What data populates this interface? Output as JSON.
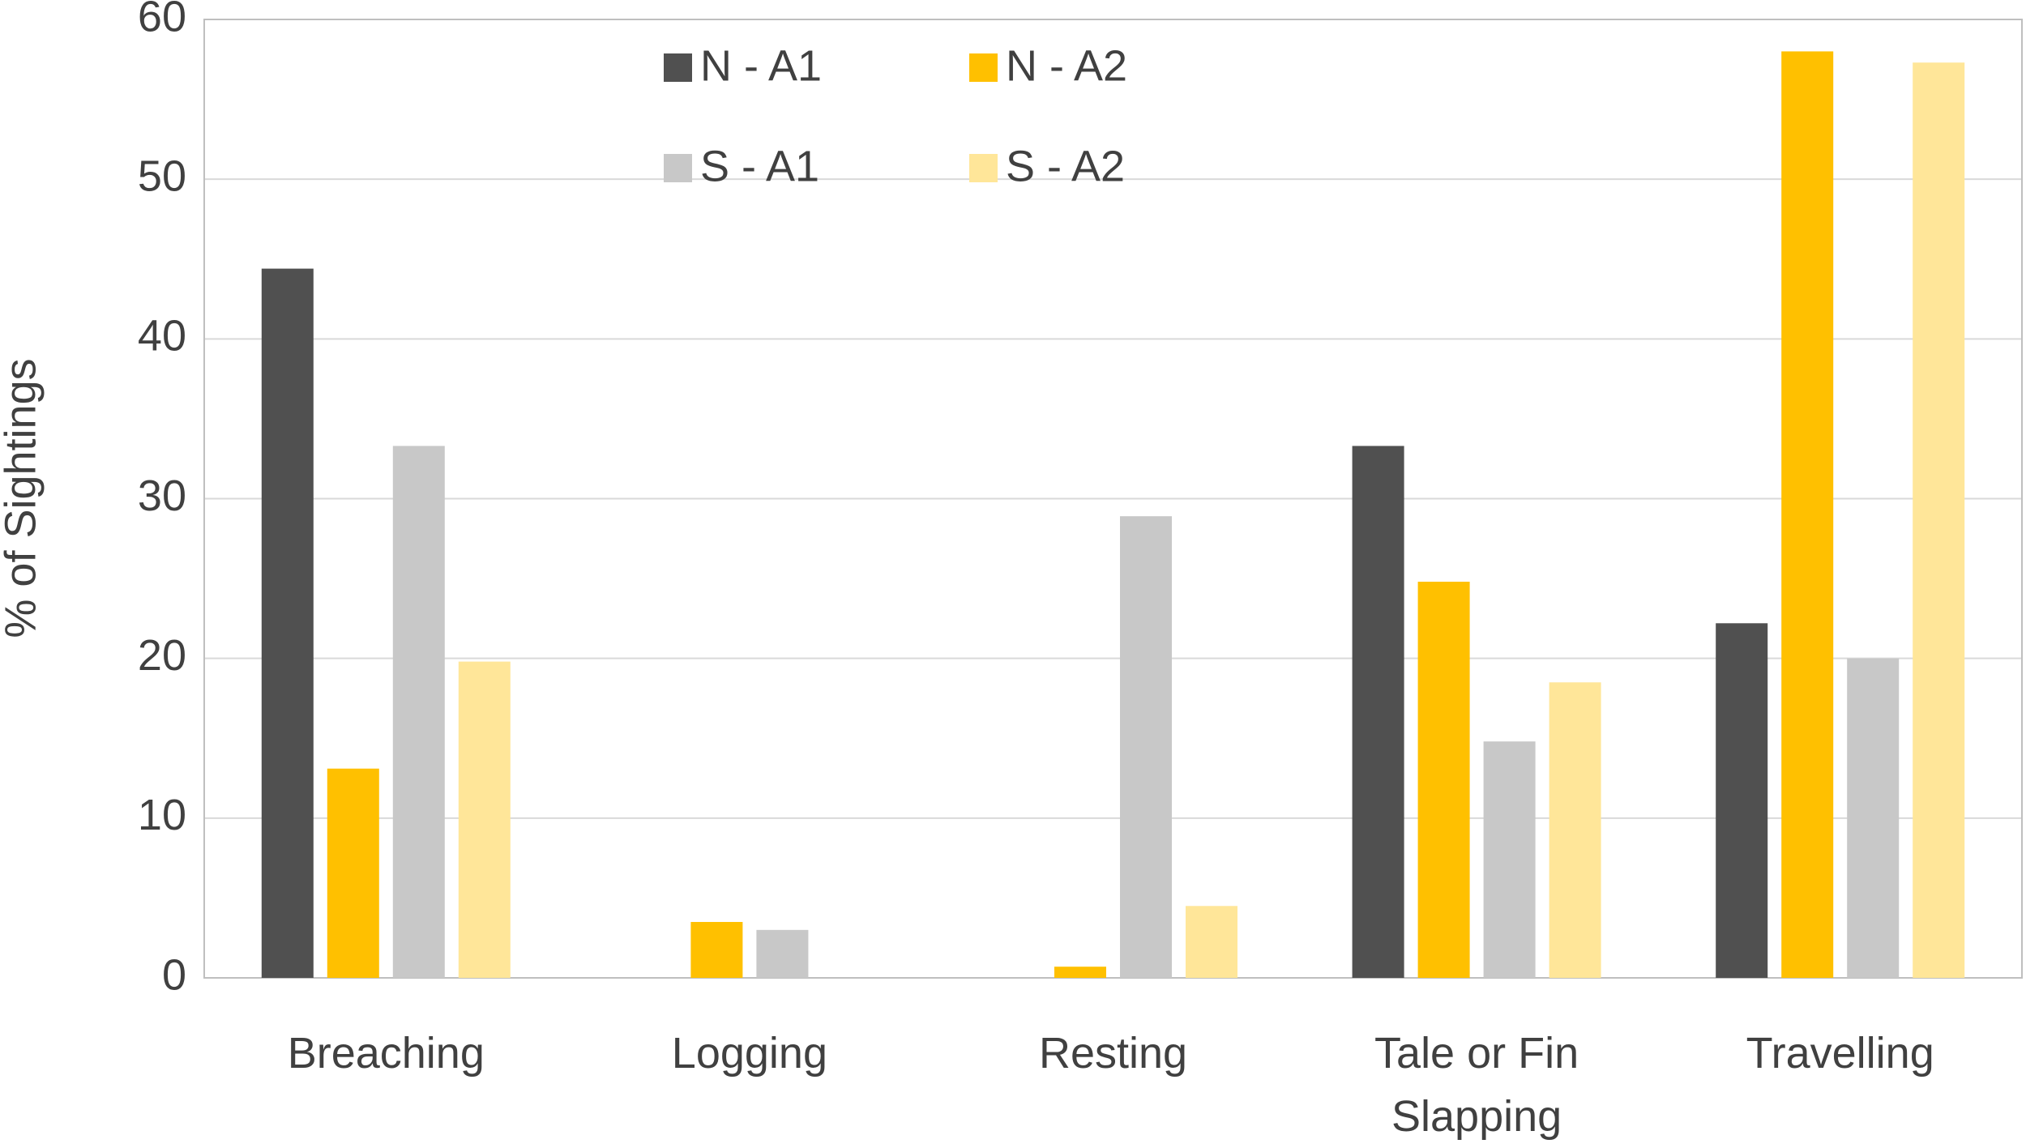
{
  "chart_data": {
    "type": "bar",
    "y_label": "% of Sightings",
    "categories": [
      "Breaching",
      "Logging",
      "Resting",
      "Tale or Fin Slapping",
      "Travelling"
    ],
    "series": [
      {
        "name": "N - A1",
        "color": "#505050",
        "values": [
          44.4,
          0,
          0,
          33.3,
          22.2
        ]
      },
      {
        "name": "N - A2",
        "color": "#ffc000",
        "values": [
          13.1,
          3.5,
          0.7,
          24.8,
          58.0
        ]
      },
      {
        "name": "S - A1",
        "color": "#c8c8c8",
        "values": [
          33.3,
          3.0,
          28.9,
          14.8,
          20.0
        ]
      },
      {
        "name": "S - A2",
        "color": "#ffe699",
        "values": [
          19.8,
          0,
          4.5,
          18.5,
          57.3
        ]
      }
    ],
    "ylim": [
      0,
      60
    ],
    "yticks": [
      0,
      10,
      20,
      30,
      40,
      50,
      60
    ],
    "grid": true,
    "legend": "top"
  }
}
